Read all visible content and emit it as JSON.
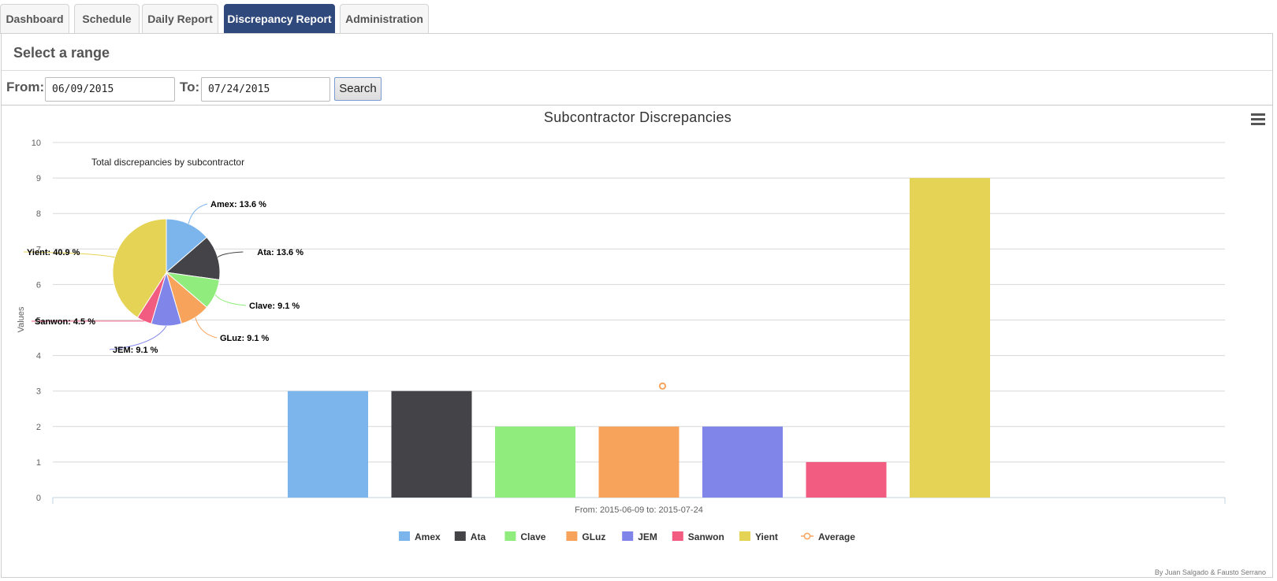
{
  "tabs": [
    {
      "label": "Dashboard",
      "active": false
    },
    {
      "label": "Schedule",
      "active": false
    },
    {
      "label": "Daily Report",
      "active": false
    },
    {
      "label": "Discrepancy Report",
      "active": true
    },
    {
      "label": "Administration",
      "active": false
    }
  ],
  "range": {
    "title": "Select a range",
    "from_label": "From:",
    "from_value": "06/09/2015",
    "to_label": "To:",
    "to_value": "07/24/2015",
    "search_label": "Search"
  },
  "menu_icon": "hamburger-menu-icon",
  "credits": "By Juan Salgado & Fausto Serrano",
  "chart_data": [
    {
      "type": "bar",
      "title": "Subcontractor Discrepancies",
      "xlabel": "From: 2015-06-09 to: 2015-07-24",
      "ylabel": "Values",
      "ylim": [
        0,
        10
      ],
      "yticks": [
        0,
        1,
        2,
        3,
        4,
        5,
        6,
        7,
        8,
        9,
        10
      ],
      "grid": true,
      "legend_position": "bottom-center",
      "series": [
        {
          "name": "Amex",
          "values": [
            3
          ],
          "color": "#7cb5ec"
        },
        {
          "name": "Ata",
          "values": [
            3
          ],
          "color": "#434348"
        },
        {
          "name": "Clave",
          "values": [
            2
          ],
          "color": "#90ed7d"
        },
        {
          "name": "GLuz",
          "values": [
            2
          ],
          "color": "#f7a35c"
        },
        {
          "name": "JEM",
          "values": [
            2
          ],
          "color": "#8085e9"
        },
        {
          "name": "Sanwon",
          "values": [
            1
          ],
          "color": "#f15c80"
        },
        {
          "name": "Yient",
          "values": [
            9
          ],
          "color": "#e4d354"
        }
      ],
      "average": {
        "name": "Average",
        "value": 3.14,
        "color": "#f7a35c",
        "type": "scatter"
      }
    },
    {
      "type": "pie",
      "title": "Total discrepancies by subcontractor",
      "slices": [
        {
          "name": "Amex",
          "value": 13.6,
          "label": "Amex: 13.6 %",
          "color": "#7cb5ec"
        },
        {
          "name": "Ata",
          "value": 13.6,
          "label": "Ata: 13.6 %",
          "color": "#434348"
        },
        {
          "name": "Clave",
          "value": 9.1,
          "label": "Clave: 9.1 %",
          "color": "#90ed7d"
        },
        {
          "name": "GLuz",
          "value": 9.1,
          "label": "GLuz: 9.1 %",
          "color": "#f7a35c"
        },
        {
          "name": "JEM",
          "value": 9.1,
          "label": "JEM: 9.1 %",
          "color": "#8085e9"
        },
        {
          "name": "Sanwon",
          "value": 4.5,
          "label": "Sanwon: 4.5 %",
          "color": "#f15c80"
        },
        {
          "name": "Yient",
          "value": 40.9,
          "label": "Yient: 40.9 %",
          "color": "#e4d354"
        }
      ]
    }
  ]
}
